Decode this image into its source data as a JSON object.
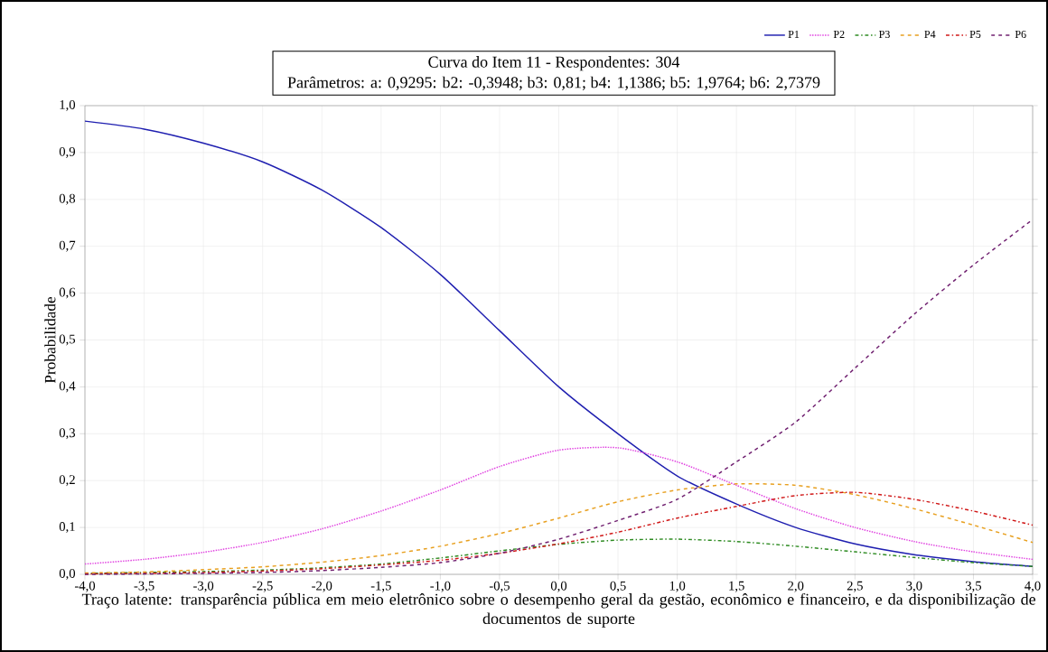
{
  "chart_data": {
    "type": "line",
    "title": "Curva do Item 11 - Respondentes: 304",
    "subtitle": "Parâmetros: a: 0,9295: b2: -0,3948; b3: 0,81; b4: 1,1386; b5: 1,9764; b6: 2,7379",
    "xlabel": "Traço latente: transparência pública em meio eletrônico sobre o desempenho geral da gestão, econômico e financeiro, e da disponibilização de documentos de suporte",
    "ylabel": "Probabilidade",
    "x": [
      -4.0,
      -3.5,
      -3.0,
      -2.5,
      -2.0,
      -1.5,
      -1.0,
      -0.5,
      0.0,
      0.5,
      1.0,
      1.5,
      2.0,
      2.5,
      3.0,
      3.5,
      4.0
    ],
    "series": [
      {
        "name": "P1",
        "color": "#1f1fb0",
        "line_style": "solid",
        "values": [
          0.967,
          0.95,
          0.92,
          0.88,
          0.82,
          0.74,
          0.64,
          0.52,
          0.4,
          0.3,
          0.21,
          0.15,
          0.1,
          0.065,
          0.042,
          0.027,
          0.017
        ]
      },
      {
        "name": "P2",
        "color": "#e040e0",
        "line_style": "dotted",
        "values": [
          0.022,
          0.032,
          0.047,
          0.068,
          0.097,
          0.135,
          0.18,
          0.23,
          0.265,
          0.27,
          0.24,
          0.19,
          0.14,
          0.1,
          0.07,
          0.048,
          0.032
        ]
      },
      {
        "name": "P3",
        "color": "#2e8b22",
        "line_style": "dashdot",
        "values": [
          0.002,
          0.004,
          0.006,
          0.009,
          0.014,
          0.022,
          0.035,
          0.05,
          0.064,
          0.073,
          0.075,
          0.07,
          0.06,
          0.048,
          0.036,
          0.025,
          0.017
        ]
      },
      {
        "name": "P4",
        "color": "#e8a020",
        "line_style": "dashed",
        "values": [
          0.003,
          0.005,
          0.01,
          0.016,
          0.026,
          0.04,
          0.06,
          0.087,
          0.12,
          0.155,
          0.18,
          0.193,
          0.19,
          0.17,
          0.14,
          0.105,
          0.068
        ]
      },
      {
        "name": "P5",
        "color": "#d01818",
        "line_style": "dashdot",
        "values": [
          0.001,
          0.002,
          0.004,
          0.007,
          0.012,
          0.02,
          0.03,
          0.045,
          0.065,
          0.09,
          0.12,
          0.145,
          0.168,
          0.175,
          0.16,
          0.135,
          0.105
        ]
      },
      {
        "name": "P6",
        "color": "#702070",
        "line_style": "dashed",
        "values": [
          0.0,
          0.001,
          0.002,
          0.004,
          0.008,
          0.015,
          0.025,
          0.045,
          0.075,
          0.115,
          0.16,
          0.24,
          0.325,
          0.44,
          0.555,
          0.66,
          0.757
        ]
      }
    ],
    "xlim": [
      -4,
      4
    ],
    "ylim": [
      0,
      1
    ],
    "xticks": [
      {
        "value": -4,
        "label": "-4,0"
      },
      {
        "value": -3.5,
        "label": "-3,5"
      },
      {
        "value": -3,
        "label": "-3,0"
      },
      {
        "value": -2.5,
        "label": "-2,5"
      },
      {
        "value": -2,
        "label": "-2,0"
      },
      {
        "value": -1.5,
        "label": "-1,5"
      },
      {
        "value": -1,
        "label": "-1,0"
      },
      {
        "value": -0.5,
        "label": "-0,5"
      },
      {
        "value": 0,
        "label": "0,0"
      },
      {
        "value": 0.5,
        "label": "0,5"
      },
      {
        "value": 1,
        "label": "1,0"
      },
      {
        "value": 1.5,
        "label": "1,5"
      },
      {
        "value": 2,
        "label": "2,0"
      },
      {
        "value": 2.5,
        "label": "2,5"
      },
      {
        "value": 3,
        "label": "3,0"
      },
      {
        "value": 3.5,
        "label": "3,5"
      },
      {
        "value": 4,
        "label": "4,0"
      }
    ],
    "yticks": [
      {
        "value": 0,
        "label": "0,0"
      },
      {
        "value": 0.1,
        "label": "0,1"
      },
      {
        "value": 0.2,
        "label": "0,2"
      },
      {
        "value": 0.3,
        "label": "0,3"
      },
      {
        "value": 0.4,
        "label": "0,4"
      },
      {
        "value": 0.5,
        "label": "0,5"
      },
      {
        "value": 0.6,
        "label": "0,6"
      },
      {
        "value": 0.7,
        "label": "0,7"
      },
      {
        "value": 0.8,
        "label": "0,8"
      },
      {
        "value": 0.9,
        "label": "0,9"
      },
      {
        "value": 1,
        "label": "1,0"
      }
    ],
    "grid": true,
    "legend": "top right"
  }
}
